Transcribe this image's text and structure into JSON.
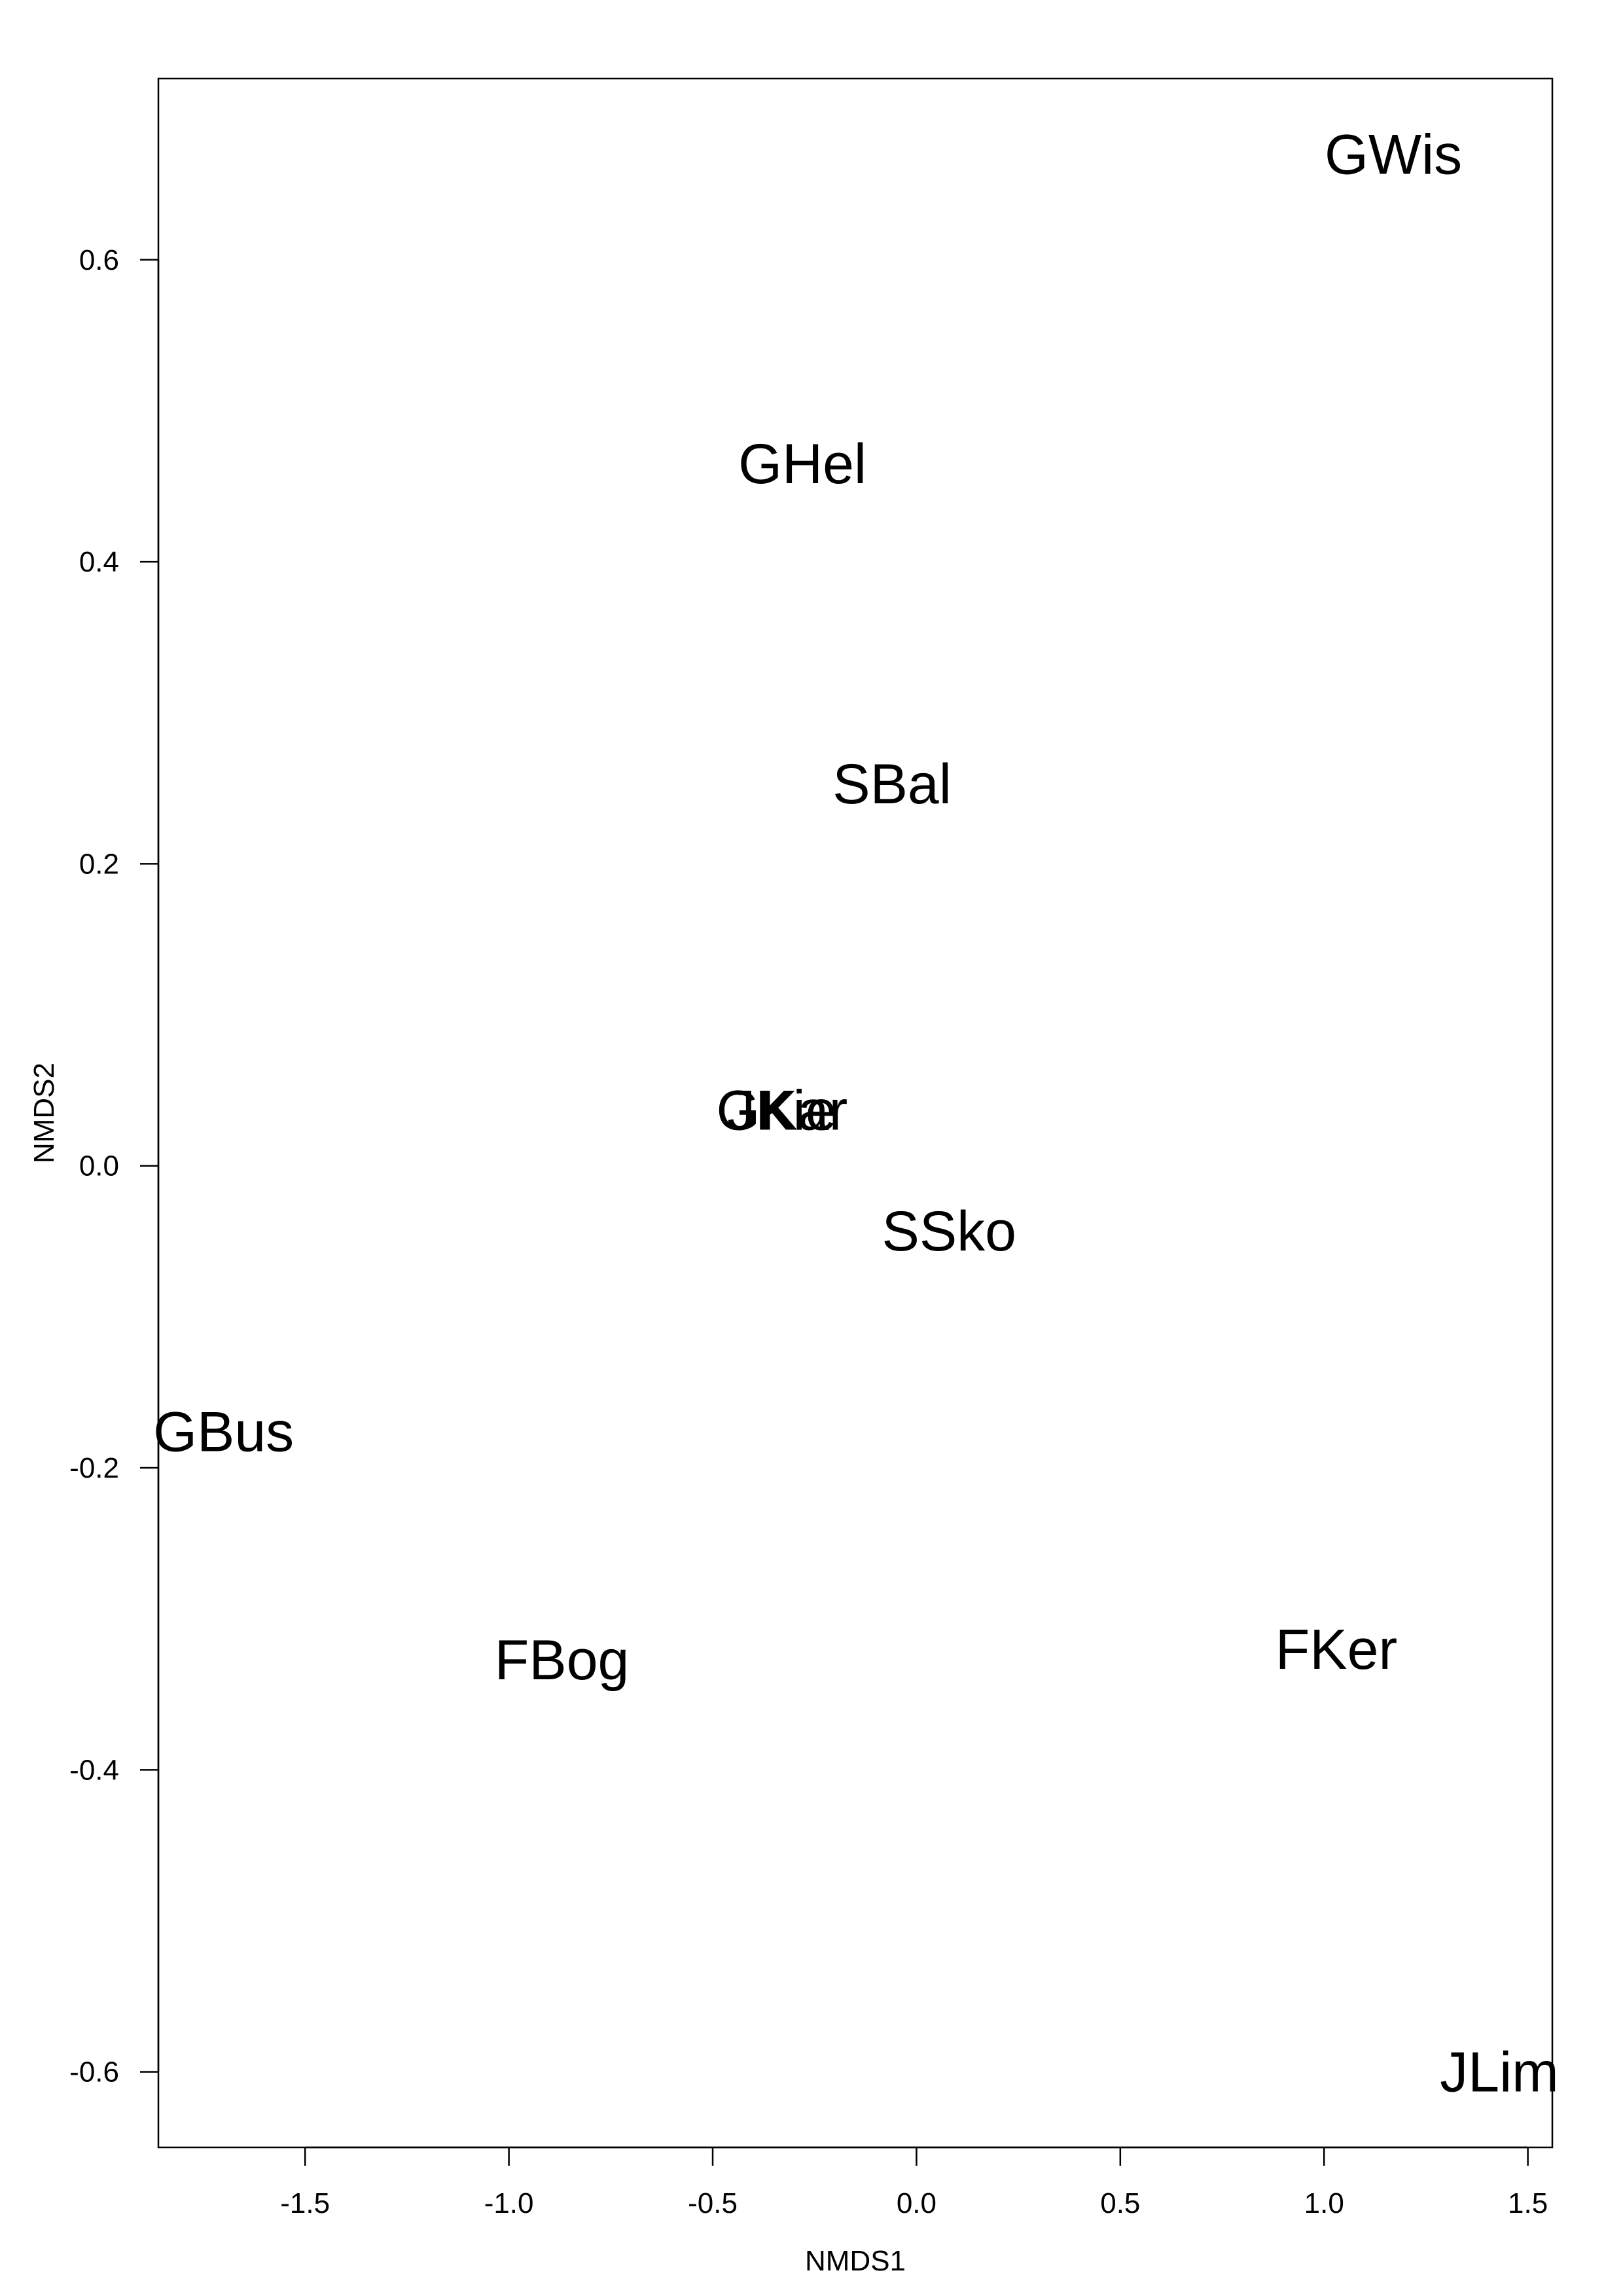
{
  "chart_data": {
    "type": "scatter",
    "title": "",
    "xlabel": "NMDS1",
    "ylabel": "NMDS2",
    "xlim": [
      -1.86,
      1.56
    ],
    "ylim": [
      -0.65,
      0.72
    ],
    "grid": false,
    "legend": "none",
    "x_ticks": [
      -1.5,
      -1.0,
      -0.5,
      0.0,
      0.5,
      1.0,
      1.5
    ],
    "x_tick_labels": [
      "-1.5",
      "-1.0",
      "-0.5",
      "0.0",
      "0.5",
      "1.0",
      "1.5"
    ],
    "y_ticks": [
      -0.6,
      -0.4,
      -0.2,
      0.0,
      0.2,
      0.4,
      0.6
    ],
    "y_tick_labels": [
      "-0.6",
      "-0.4",
      "-0.2",
      "0.0",
      "0.2",
      "0.4",
      "0.6"
    ],
    "points": [
      {
        "label": "GWis",
        "x": 1.17,
        "y": 0.67
      },
      {
        "label": "GHel",
        "x": -0.28,
        "y": 0.465
      },
      {
        "label": "SBal",
        "x": -0.06,
        "y": 0.253
      },
      {
        "label": "GKar",
        "x": -0.33,
        "y": 0.037
      },
      {
        "label": "JKie",
        "x": -0.33,
        "y": 0.037
      },
      {
        "label": "SSko",
        "x": 0.08,
        "y": -0.043
      },
      {
        "label": "GBus",
        "x": -1.7,
        "y": -0.176
      },
      {
        "label": "FBog",
        "x": -0.87,
        "y": -0.327
      },
      {
        "label": "FKer",
        "x": 1.03,
        "y": -0.32
      },
      {
        "label": "JLim",
        "x": 1.43,
        "y": -0.6
      }
    ],
    "colors": {
      "text": "#000000",
      "axis": "#000000",
      "background": "#ffffff"
    }
  }
}
